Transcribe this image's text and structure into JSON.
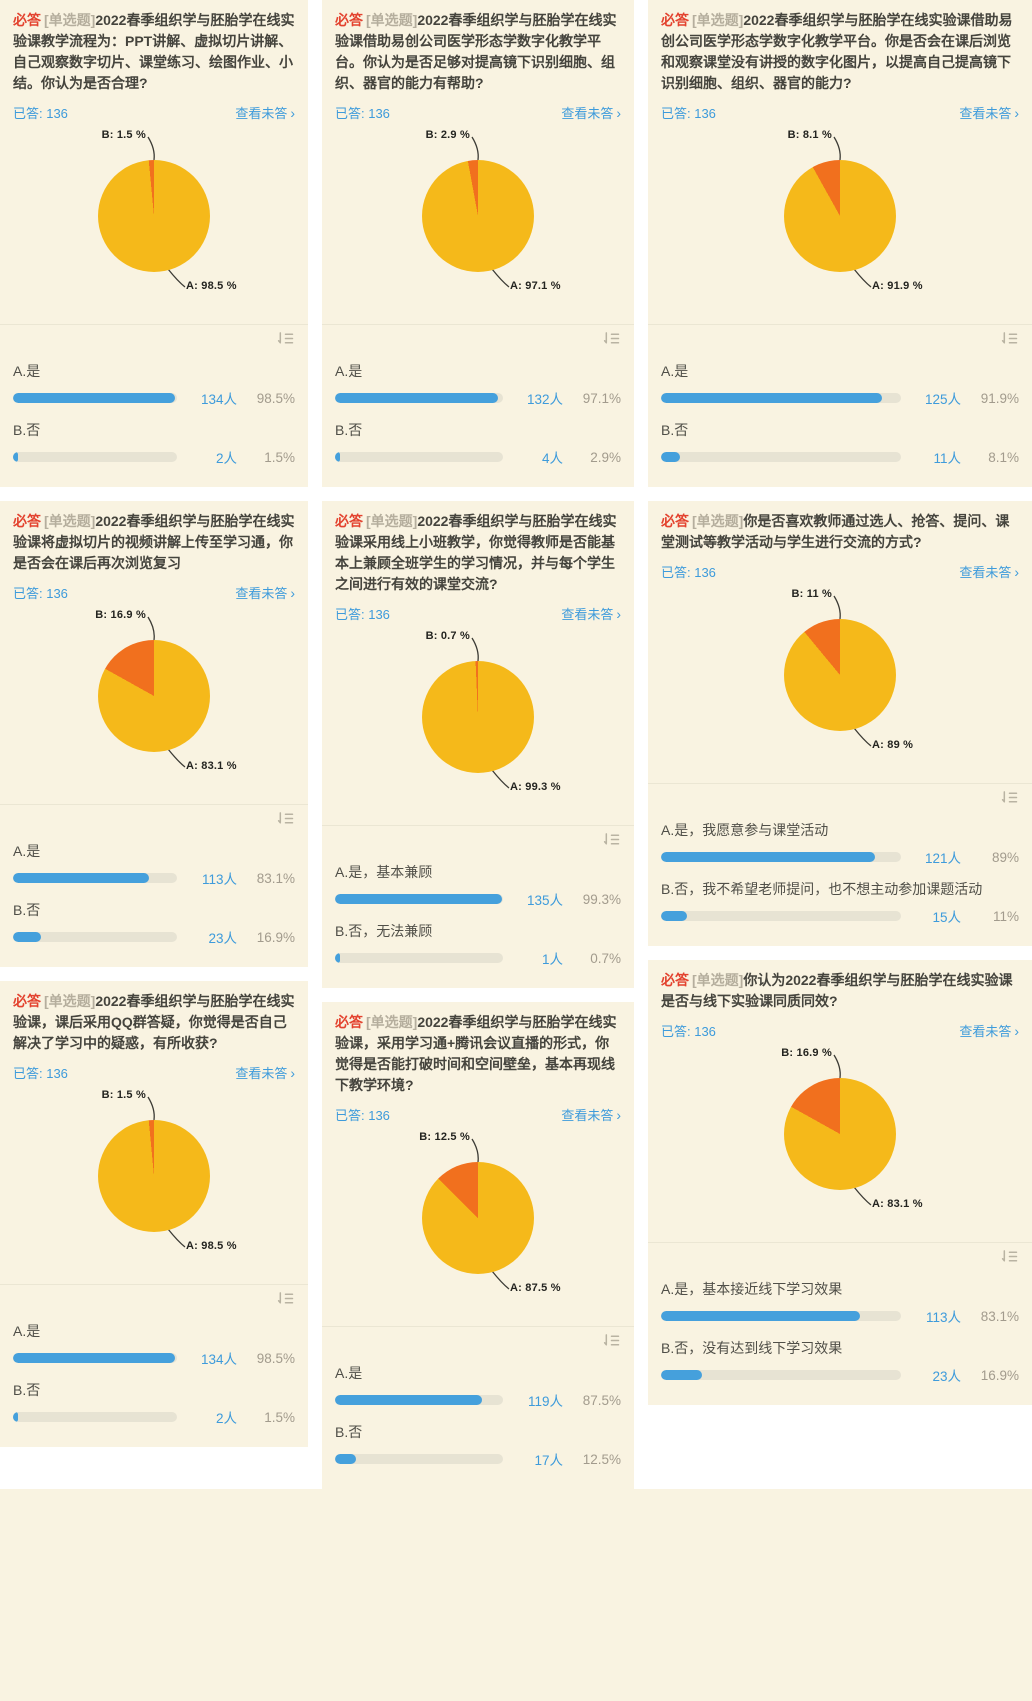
{
  "colors": {
    "page_bg": "#f9f3e1",
    "gap_white": "#ffffff",
    "required_red": "#e3422e",
    "type_gray": "#b5ae9d",
    "link_blue": "#3e9bdb",
    "pie_yellow": "#f5b91a",
    "pie_orange": "#f1701e",
    "bar_fill_blue": "#45a0dc",
    "bar_track": "#e7e3d3",
    "percent_gray": "#a29b8d"
  },
  "common": {
    "required_label": "必答",
    "type_label": "[单选题]",
    "view_unanswered": "查看未答",
    "chevron": "›",
    "sort_icon": "sort-descending-icon"
  },
  "panels": [
    {
      "question": "2022春季组织学与胚胎学在线实验课教学流程为：PPT讲解、虚拟切片讲解、自己观察数字切片、课堂练习、绘图作业、小结。你认为是否合理?",
      "answered_text": "已答: 136",
      "pie": {
        "a_pct": 98.5,
        "b_pct": 1.5,
        "a_label": "A: 98.5 %",
        "b_label": "B: 1.5 %"
      },
      "options": [
        {
          "label": "A.是",
          "count": "134人",
          "percent": "98.5%",
          "value": 98.5
        },
        {
          "label": "B.否",
          "count": "2人",
          "percent": "1.5%",
          "value": 1.5
        }
      ]
    },
    {
      "question": "2022春季组织学与胚胎学在线实验课借助易创公司医学形态学数字化教学平台。你认为是否足够对提高镜下识别细胞、组织、器官的能力有帮助?",
      "answered_text": "已答: 136",
      "pie": {
        "a_pct": 97.1,
        "b_pct": 2.9,
        "a_label": "A: 97.1 %",
        "b_label": "B: 2.9 %"
      },
      "options": [
        {
          "label": "A.是",
          "count": "132人",
          "percent": "97.1%",
          "value": 97.1
        },
        {
          "label": "B.否",
          "count": "4人",
          "percent": "2.9%",
          "value": 2.9
        }
      ]
    },
    {
      "question": "2022春季组织学与胚胎学在线实验课借助易创公司医学形态学数字化教学平台。你是否会在课后浏览和观察课堂没有讲授的数字化图片，以提高自己提高镜下识别细胞、组织、器官的能力?",
      "answered_text": "已答: 136",
      "pie": {
        "a_pct": 91.9,
        "b_pct": 8.1,
        "a_label": "A: 91.9 %",
        "b_label": "B: 8.1 %"
      },
      "options": [
        {
          "label": "A.是",
          "count": "125人",
          "percent": "91.9%",
          "value": 91.9
        },
        {
          "label": "B.否",
          "count": "11人",
          "percent": "8.1%",
          "value": 8.1
        }
      ]
    },
    {
      "question": "2022春季组织学与胚胎学在线实验课将虚拟切片的视频讲解上传至学习通，你是否会在课后再次浏览复习",
      "answered_text": "已答: 136",
      "pie": {
        "a_pct": 83.1,
        "b_pct": 16.9,
        "a_label": "A: 83.1 %",
        "b_label": "B: 16.9 %"
      },
      "options": [
        {
          "label": "A.是",
          "count": "113人",
          "percent": "83.1%",
          "value": 83.1
        },
        {
          "label": "B.否",
          "count": "23人",
          "percent": "16.9%",
          "value": 16.9
        }
      ]
    },
    {
      "question": "2022春季组织学与胚胎学在线实验课采用线上小班教学，你觉得教师是否能基本上兼顾全班学生的学习情况，并与每个学生之间进行有效的课堂交流?",
      "answered_text": "已答: 136",
      "pie": {
        "a_pct": 99.3,
        "b_pct": 0.7,
        "a_label": "A: 99.3 %",
        "b_label": "B: 0.7 %"
      },
      "options": [
        {
          "label": "A.是，基本兼顾",
          "count": "135人",
          "percent": "99.3%",
          "value": 99.3
        },
        {
          "label": "B.否，无法兼顾",
          "count": "1人",
          "percent": "0.7%",
          "value": 0.7
        }
      ]
    },
    {
      "question": "你是否喜欢教师通过选人、抢答、提问、课堂测试等教学活动与学生进行交流的方式?",
      "answered_text": "已答: 136",
      "pie": {
        "a_pct": 89,
        "b_pct": 11,
        "a_label": "A: 89 %",
        "b_label": "B: 11 %"
      },
      "options": [
        {
          "label": "A.是，我愿意参与课堂活动",
          "count": "121人",
          "percent": "89%",
          "value": 89
        },
        {
          "label": "B.否，我不希望老师提问，也不想主动参加课题活动",
          "count": "15人",
          "percent": "11%",
          "value": 11
        }
      ]
    },
    {
      "question": "2022春季组织学与胚胎学在线实验课，课后采用QQ群答疑，你觉得是否自己解决了学习中的疑惑，有所收获?",
      "answered_text": "已答: 136",
      "pie": {
        "a_pct": 98.5,
        "b_pct": 1.5,
        "a_label": "A: 98.5 %",
        "b_label": "B: 1.5 %"
      },
      "options": [
        {
          "label": "A.是",
          "count": "134人",
          "percent": "98.5%",
          "value": 98.5
        },
        {
          "label": "B.否",
          "count": "2人",
          "percent": "1.5%",
          "value": 1.5
        }
      ]
    },
    {
      "question": "2022春季组织学与胚胎学在线实验课，采用学习通+腾讯会议直播的形式，你觉得是否能打破时间和空间壁垒，基本再现线下教学环境?",
      "answered_text": "已答: 136",
      "pie": {
        "a_pct": 87.5,
        "b_pct": 12.5,
        "a_label": "A: 87.5 %",
        "b_label": "B: 12.5 %"
      },
      "options": [
        {
          "label": "A.是",
          "count": "119人",
          "percent": "87.5%",
          "value": 87.5
        },
        {
          "label": "B.否",
          "count": "17人",
          "percent": "12.5%",
          "value": 12.5
        }
      ]
    },
    {
      "question": "你认为2022春季组织学与胚胎学在线实验课是否与线下实验课同质同效?",
      "answered_text": "已答: 136",
      "pie": {
        "a_pct": 83.1,
        "b_pct": 16.9,
        "a_label": "A: 83.1 %",
        "b_label": "B: 16.9 %"
      },
      "options": [
        {
          "label": "A.是，基本接近线下学习效果",
          "count": "113人",
          "percent": "83.1%",
          "value": 83.1
        },
        {
          "label": "B.否，没有达到线下学习效果",
          "count": "23人",
          "percent": "16.9%",
          "value": 16.9
        }
      ]
    }
  ],
  "chart_data": [
    {
      "type": "pie",
      "categories": [
        "A",
        "B"
      ],
      "values": [
        98.5,
        1.5
      ],
      "title": "教学流程是否合理"
    },
    {
      "type": "pie",
      "categories": [
        "A",
        "B"
      ],
      "values": [
        97.1,
        2.9
      ],
      "title": "数字化教学平台是否有帮助"
    },
    {
      "type": "pie",
      "categories": [
        "A",
        "B"
      ],
      "values": [
        91.9,
        8.1
      ],
      "title": "是否课后浏览数字化图片"
    },
    {
      "type": "pie",
      "categories": [
        "A",
        "B"
      ],
      "values": [
        83.1,
        16.9
      ],
      "title": "是否课后再次浏览复习"
    },
    {
      "type": "pie",
      "categories": [
        "A",
        "B"
      ],
      "values": [
        99.3,
        0.7
      ],
      "title": "教师是否能兼顾全班"
    },
    {
      "type": "pie",
      "categories": [
        "A",
        "B"
      ],
      "values": [
        89,
        11
      ],
      "title": "是否喜欢课堂交流方式"
    },
    {
      "type": "pie",
      "categories": [
        "A",
        "B"
      ],
      "values": [
        98.5,
        1.5
      ],
      "title": "QQ群答疑是否有收获"
    },
    {
      "type": "pie",
      "categories": [
        "A",
        "B"
      ],
      "values": [
        87.5,
        12.5
      ],
      "title": "是否再现线下教学环境"
    },
    {
      "type": "pie",
      "categories": [
        "A",
        "B"
      ],
      "values": [
        83.1,
        16.9
      ],
      "title": "是否与线下实验课同质同效"
    }
  ]
}
